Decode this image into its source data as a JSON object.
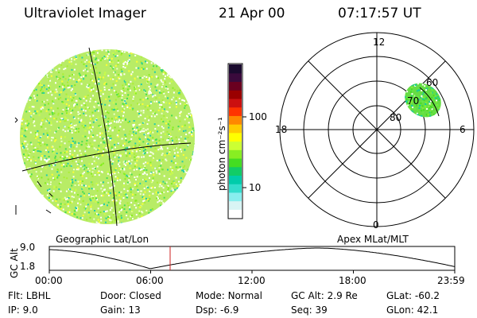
{
  "header": {
    "instrument": "Ultraviolet Imager",
    "date": "21 Apr 00",
    "time": "07:17:57 UT"
  },
  "colorbar": {
    "unit_label": "photon cm⁻²s⁻¹",
    "ticks": [
      "100",
      "10"
    ],
    "colors": [
      "#1a0a2e",
      "#3a0a3c",
      "#6a0020",
      "#9a0000",
      "#cc1010",
      "#ff3300",
      "#ff8800",
      "#ffcc00",
      "#ffff00",
      "#ccff33",
      "#88ee22",
      "#44dd22",
      "#11cc66",
      "#00ccaa",
      "#33ddcc",
      "#88eeee",
      "#d8f4f4",
      "#ffffff"
    ]
  },
  "polar": {
    "labels": {
      "top": "12",
      "left": "18",
      "right": "6",
      "bottom": "0"
    },
    "rings": [
      "80",
      "70",
      "60"
    ]
  },
  "panel_labels": {
    "left": "Geographic Lat/Lon",
    "right": "Apex MLat/MLT"
  },
  "altitude_plot": {
    "ylabel": "GC Alt",
    "yticks": [
      "9.0",
      "1.8"
    ],
    "xticks": [
      "00:00",
      "06:00",
      "12:00",
      "18:00",
      "23:59"
    ]
  },
  "footer": [
    [
      {
        "k": "Flt:",
        "v": "LBHL"
      },
      {
        "k": "Door:",
        "v": "Closed"
      },
      {
        "k": "Mode:",
        "v": "Normal"
      },
      {
        "k": "GC Alt:",
        "v": "2.9 Re"
      },
      {
        "k": "GLat:",
        "v": "-60.2"
      }
    ],
    [
      {
        "k": "IP:",
        "v": "9.0"
      },
      {
        "k": "Gain:",
        "v": "13"
      },
      {
        "k": "Dsp:",
        "v": "-6.9"
      },
      {
        "k": "Seq:",
        "v": "39"
      },
      {
        "k": "GLon:",
        "v": "42.1"
      }
    ]
  ]
}
